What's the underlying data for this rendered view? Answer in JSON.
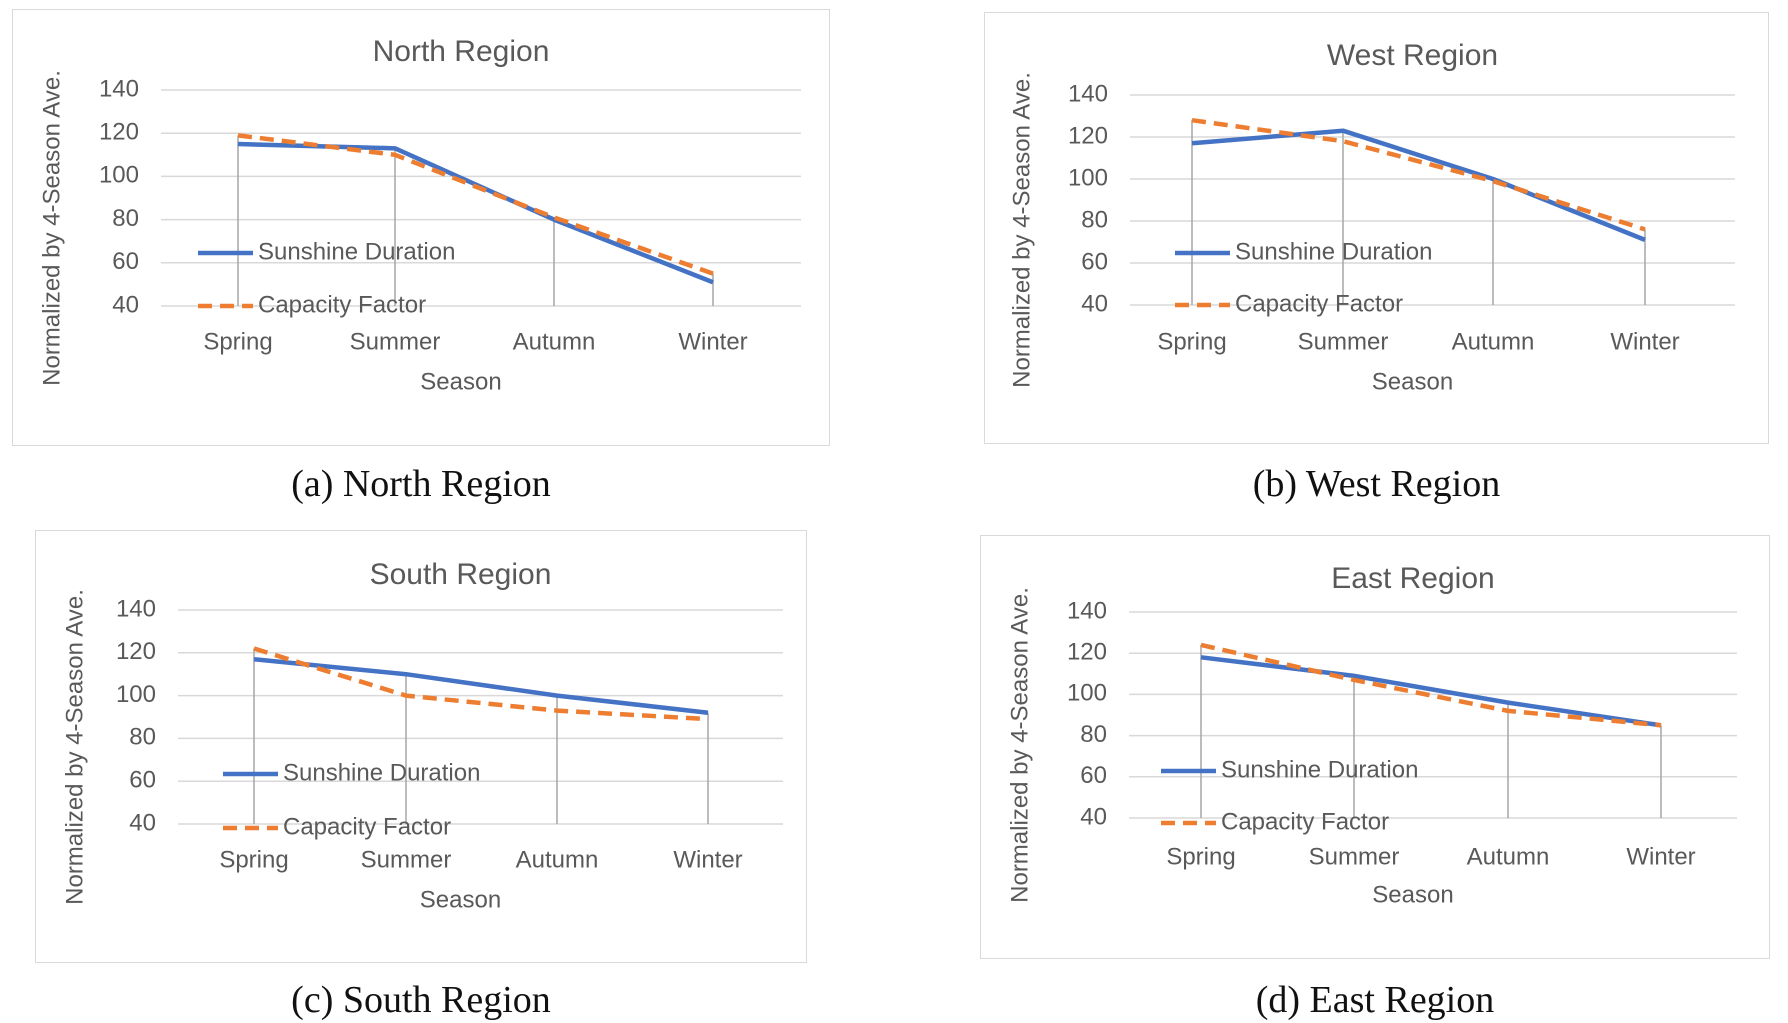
{
  "colors": {
    "sunshine": "#4472c4",
    "capacity": "#ed7d31",
    "text": "#595959",
    "grid": "#d9d9d9",
    "droplines": "#a6a6a6"
  },
  "chart_data": [
    {
      "type": "line",
      "title": "North Region",
      "caption": "(a) North Region",
      "xlabel": "Season",
      "ylabel": "Normalized by 4-Season Ave.",
      "categories": [
        "Spring",
        "Summer",
        "Autumn",
        "Winter"
      ],
      "ylim": [
        40,
        140
      ],
      "yticks": [
        40,
        60,
        80,
        100,
        120,
        140
      ],
      "grid": true,
      "legend": "left",
      "series": [
        {
          "name": "Sunshine Duration",
          "style": "solid",
          "values": [
            115,
            113,
            80,
            51
          ]
        },
        {
          "name": "Capacity Factor",
          "style": "dashed",
          "values": [
            119,
            110,
            81,
            55
          ]
        }
      ]
    },
    {
      "type": "line",
      "title": "West Region",
      "caption": "(b) West Region",
      "xlabel": "Season",
      "ylabel": "Normalized by 4-Season Ave.",
      "categories": [
        "Spring",
        "Summer",
        "Autumn",
        "Winter"
      ],
      "ylim": [
        40,
        140
      ],
      "yticks": [
        40,
        60,
        80,
        100,
        120,
        140
      ],
      "grid": true,
      "legend": "left",
      "series": [
        {
          "name": "Sunshine Duration",
          "style": "solid",
          "values": [
            117,
            123,
            100,
            71
          ]
        },
        {
          "name": "Capacity Factor",
          "style": "dashed",
          "values": [
            128,
            118,
            99,
            76
          ]
        }
      ]
    },
    {
      "type": "line",
      "title": "South Region",
      "caption": "(c) South Region",
      "xlabel": "Season",
      "ylabel": "Normalized by 4-Season Ave.",
      "categories": [
        "Spring",
        "Summer",
        "Autumn",
        "Winter"
      ],
      "ylim": [
        40,
        140
      ],
      "yticks": [
        40,
        60,
        80,
        100,
        120,
        140
      ],
      "grid": true,
      "legend": "left",
      "series": [
        {
          "name": "Sunshine Duration",
          "style": "solid",
          "values": [
            117,
            110,
            100,
            92
          ]
        },
        {
          "name": "Capacity Factor",
          "style": "dashed",
          "values": [
            122,
            100,
            93,
            89
          ]
        }
      ]
    },
    {
      "type": "line",
      "title": "East Region",
      "caption": "(d) East Region",
      "xlabel": "Season",
      "ylabel": "Normalized by 4-Season Ave.",
      "categories": [
        "Spring",
        "Summer",
        "Autumn",
        "Winter"
      ],
      "ylim": [
        40,
        140
      ],
      "yticks": [
        40,
        60,
        80,
        100,
        120,
        140
      ],
      "grid": true,
      "legend": "left",
      "series": [
        {
          "name": "Sunshine Duration",
          "style": "solid",
          "values": [
            118,
            109,
            96,
            85
          ]
        },
        {
          "name": "Capacity Factor",
          "style": "dashed",
          "values": [
            124,
            107,
            92,
            85
          ]
        }
      ]
    }
  ]
}
